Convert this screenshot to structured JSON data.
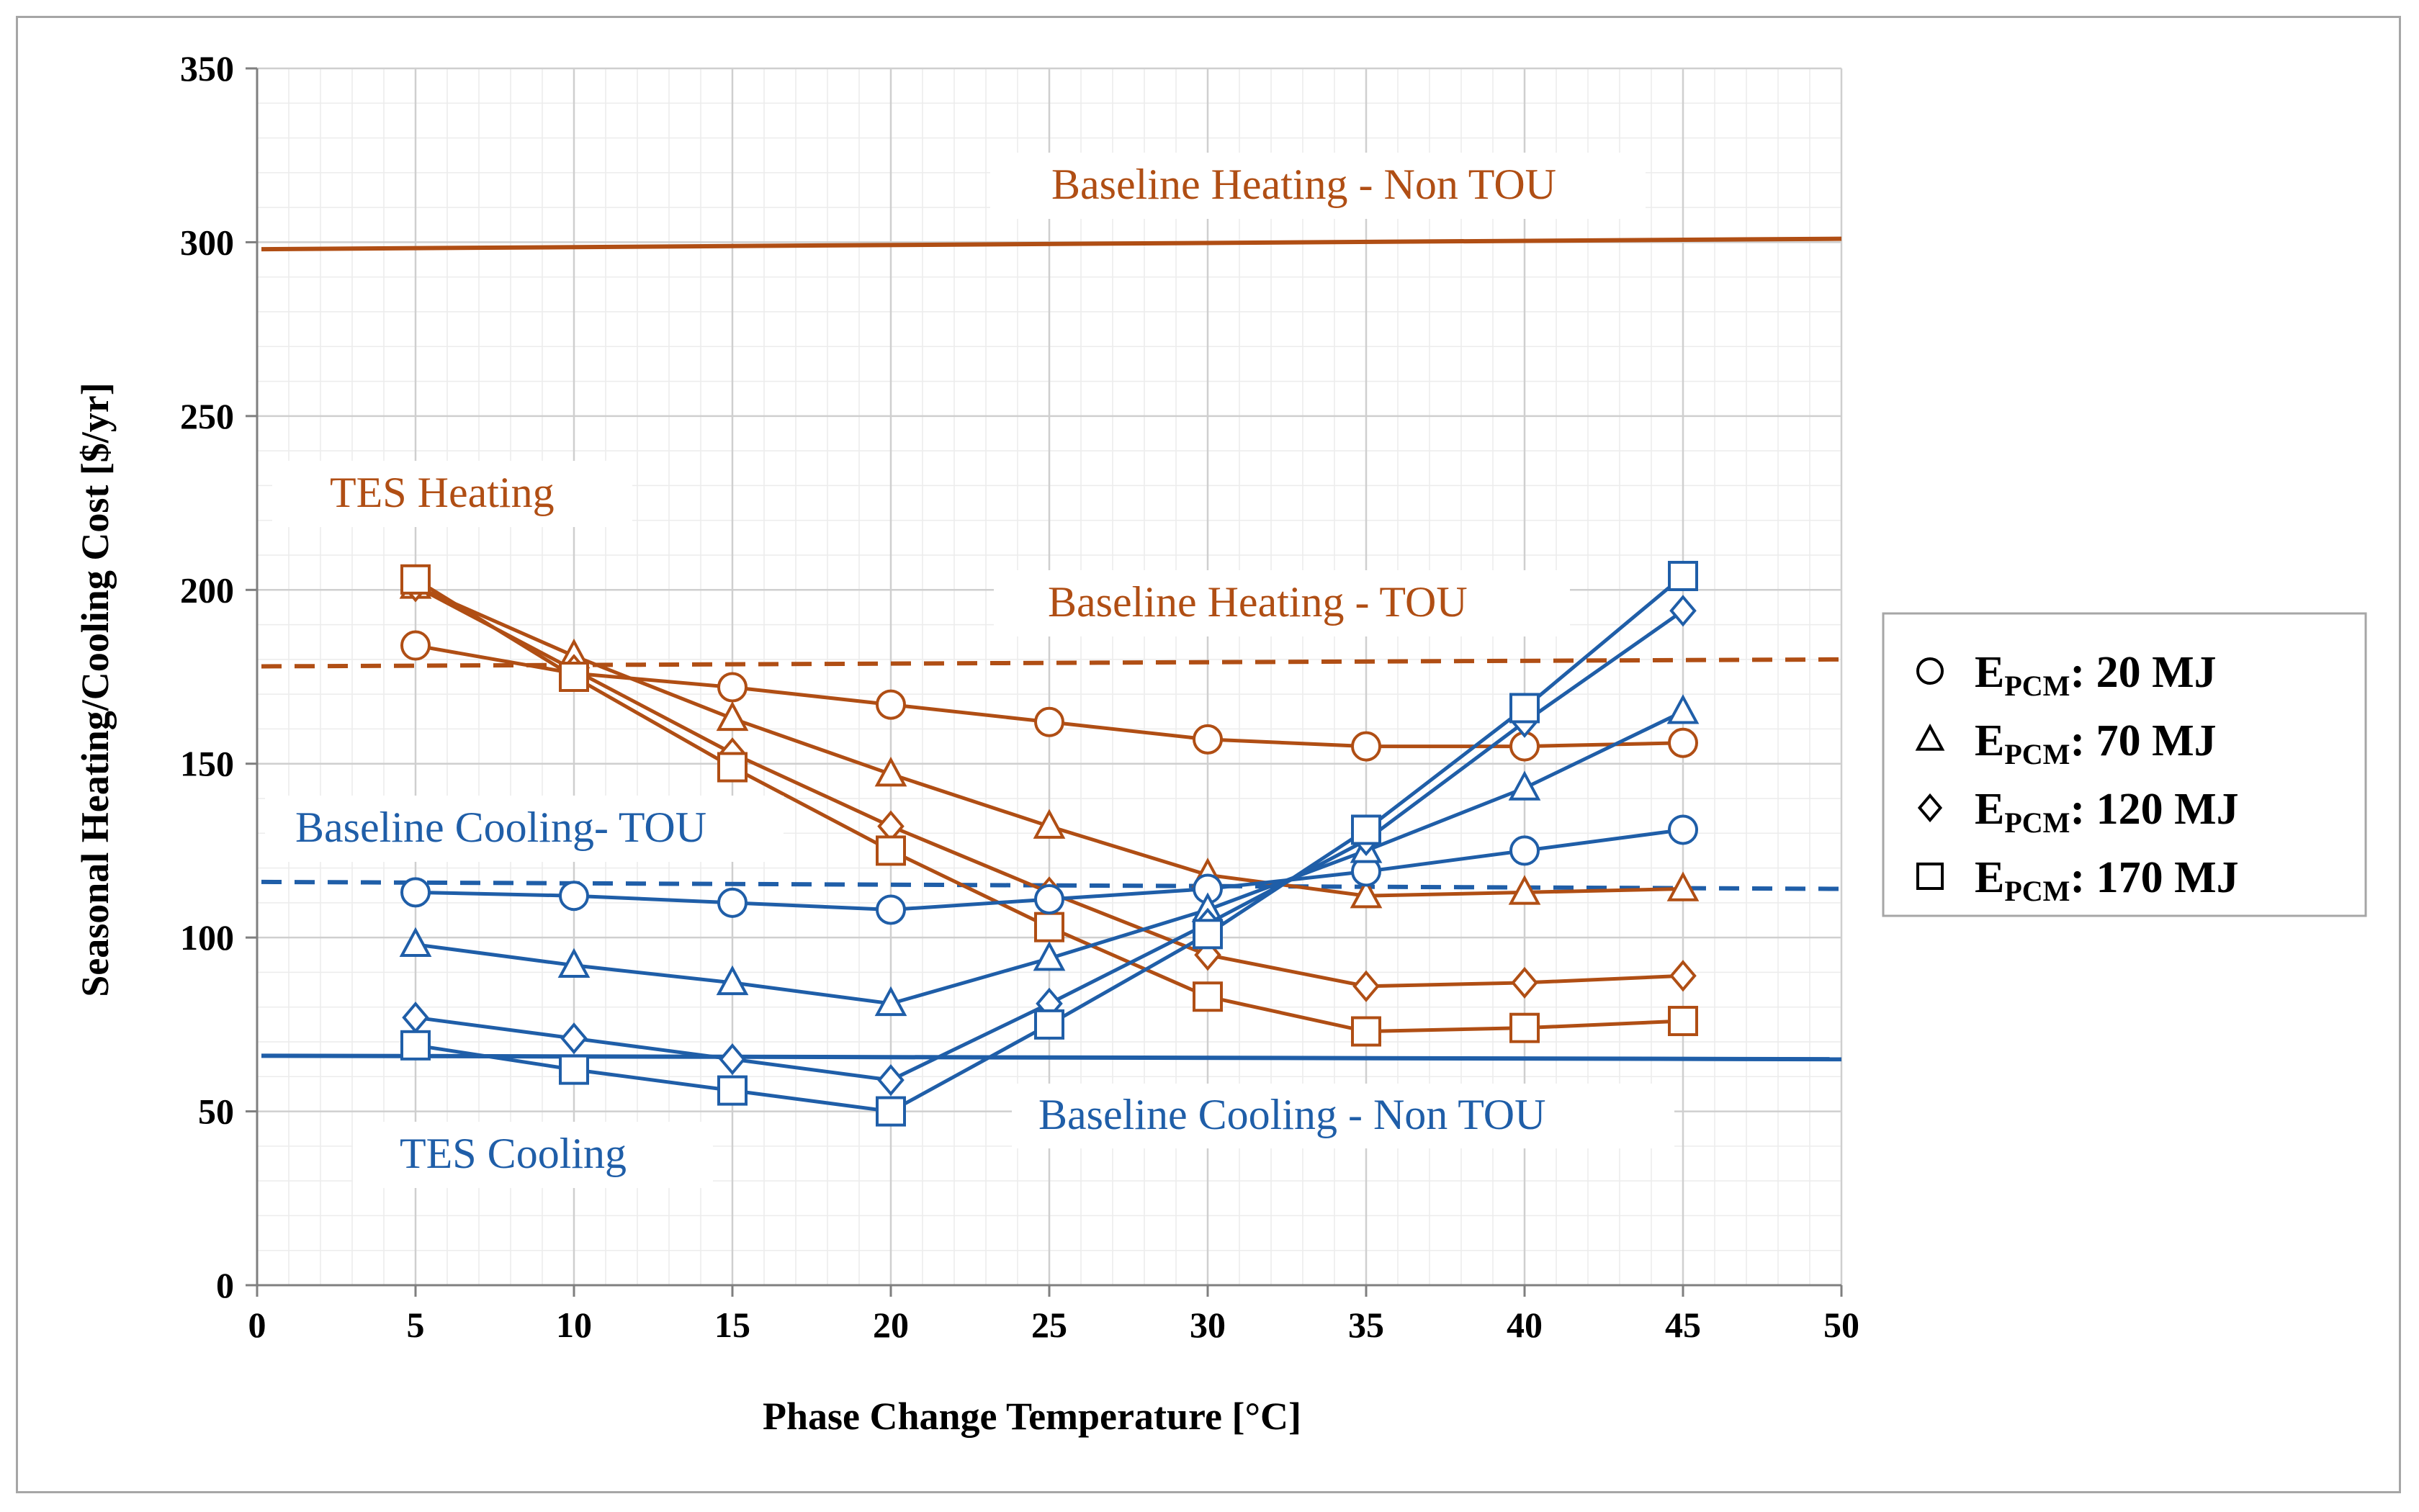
{
  "chart_data": {
    "type": "line",
    "xlabel": "Phase Change Temperature [°C]",
    "ylabel": "Seasonal Heating/Cooling  Cost [$/yr]",
    "xlim": [
      0,
      50
    ],
    "ylim": [
      0,
      350
    ],
    "xticks": [
      0,
      5,
      10,
      15,
      20,
      25,
      30,
      35,
      40,
      45,
      50
    ],
    "yticks": [
      0,
      50,
      100,
      150,
      200,
      250,
      300,
      350
    ],
    "x": [
      5,
      10,
      15,
      20,
      25,
      30,
      35,
      40,
      45
    ],
    "colors": {
      "heating": "#b04e14",
      "cooling": "#1f5ea8"
    },
    "series": [
      {
        "name": "TES Heating 20 MJ",
        "group": "heating",
        "marker": "circle",
        "values": [
          184,
          176,
          172,
          167,
          162,
          157,
          155,
          155,
          156
        ]
      },
      {
        "name": "TES Heating 70 MJ",
        "group": "heating",
        "marker": "triangle",
        "values": [
          201,
          181,
          163,
          147,
          132,
          118,
          112,
          113,
          114
        ]
      },
      {
        "name": "TES Heating 120 MJ",
        "group": "heating",
        "marker": "diamond",
        "values": [
          201,
          177,
          153,
          132,
          113,
          95,
          86,
          87,
          89
        ]
      },
      {
        "name": "TES Heating 170 MJ",
        "group": "heating",
        "marker": "square",
        "values": [
          203,
          175,
          149,
          125,
          103,
          83,
          73,
          74,
          76
        ]
      },
      {
        "name": "TES Cooling 20 MJ",
        "group": "cooling",
        "marker": "circle",
        "values": [
          113,
          112,
          110,
          108,
          111,
          114,
          119,
          125,
          131
        ]
      },
      {
        "name": "TES Cooling 70 MJ",
        "group": "cooling",
        "marker": "triangle",
        "values": [
          98,
          92,
          87,
          81,
          94,
          108,
          125,
          143,
          165
        ]
      },
      {
        "name": "TES Cooling 120 MJ",
        "group": "cooling",
        "marker": "diamond",
        "values": [
          77,
          71,
          65,
          59,
          81,
          104,
          128,
          162,
          194
        ]
      },
      {
        "name": "TES Cooling 170 MJ",
        "group": "cooling",
        "marker": "square",
        "values": [
          69,
          62,
          56,
          50,
          75,
          101,
          131,
          166,
          204
        ]
      }
    ],
    "baselines": [
      {
        "name": "Baseline Heating - Non TOU",
        "group": "heating",
        "style": "solid",
        "y_start": 298,
        "y_end": 301
      },
      {
        "name": "Baseline Heating - TOU",
        "group": "heating",
        "style": "dashed",
        "y_start": 178,
        "y_end": 180
      },
      {
        "name": "Baseline Cooling- TOU",
        "group": "cooling",
        "style": "dashed",
        "y_start": 116,
        "y_end": 114
      },
      {
        "name": "Baseline Cooling - Non TOU",
        "group": "cooling",
        "style": "solid",
        "y_start": 66,
        "y_end": 65
      }
    ],
    "annotations": [
      {
        "text": "Baseline Heating - Non TOU",
        "group": "heating"
      },
      {
        "text": "TES Heating",
        "group": "heating"
      },
      {
        "text": "Baseline Heating - TOU",
        "group": "heating"
      },
      {
        "text": "Baseline Cooling- TOU",
        "group": "cooling"
      },
      {
        "text": "TES Cooling",
        "group": "cooling"
      },
      {
        "text": "Baseline Cooling - Non TOU",
        "group": "cooling"
      }
    ],
    "legend": {
      "position": "right",
      "items": [
        {
          "marker": "circle",
          "symbol": "E",
          "subscript": "PCM",
          "value": ": 20 MJ"
        },
        {
          "marker": "triangle",
          "symbol": "E",
          "subscript": "PCM",
          "value": ": 70 MJ"
        },
        {
          "marker": "diamond",
          "symbol": "E",
          "subscript": "PCM",
          "value": ": 120 MJ"
        },
        {
          "marker": "square",
          "symbol": "E",
          "subscript": "PCM",
          "value": ": 170 MJ"
        }
      ]
    }
  }
}
